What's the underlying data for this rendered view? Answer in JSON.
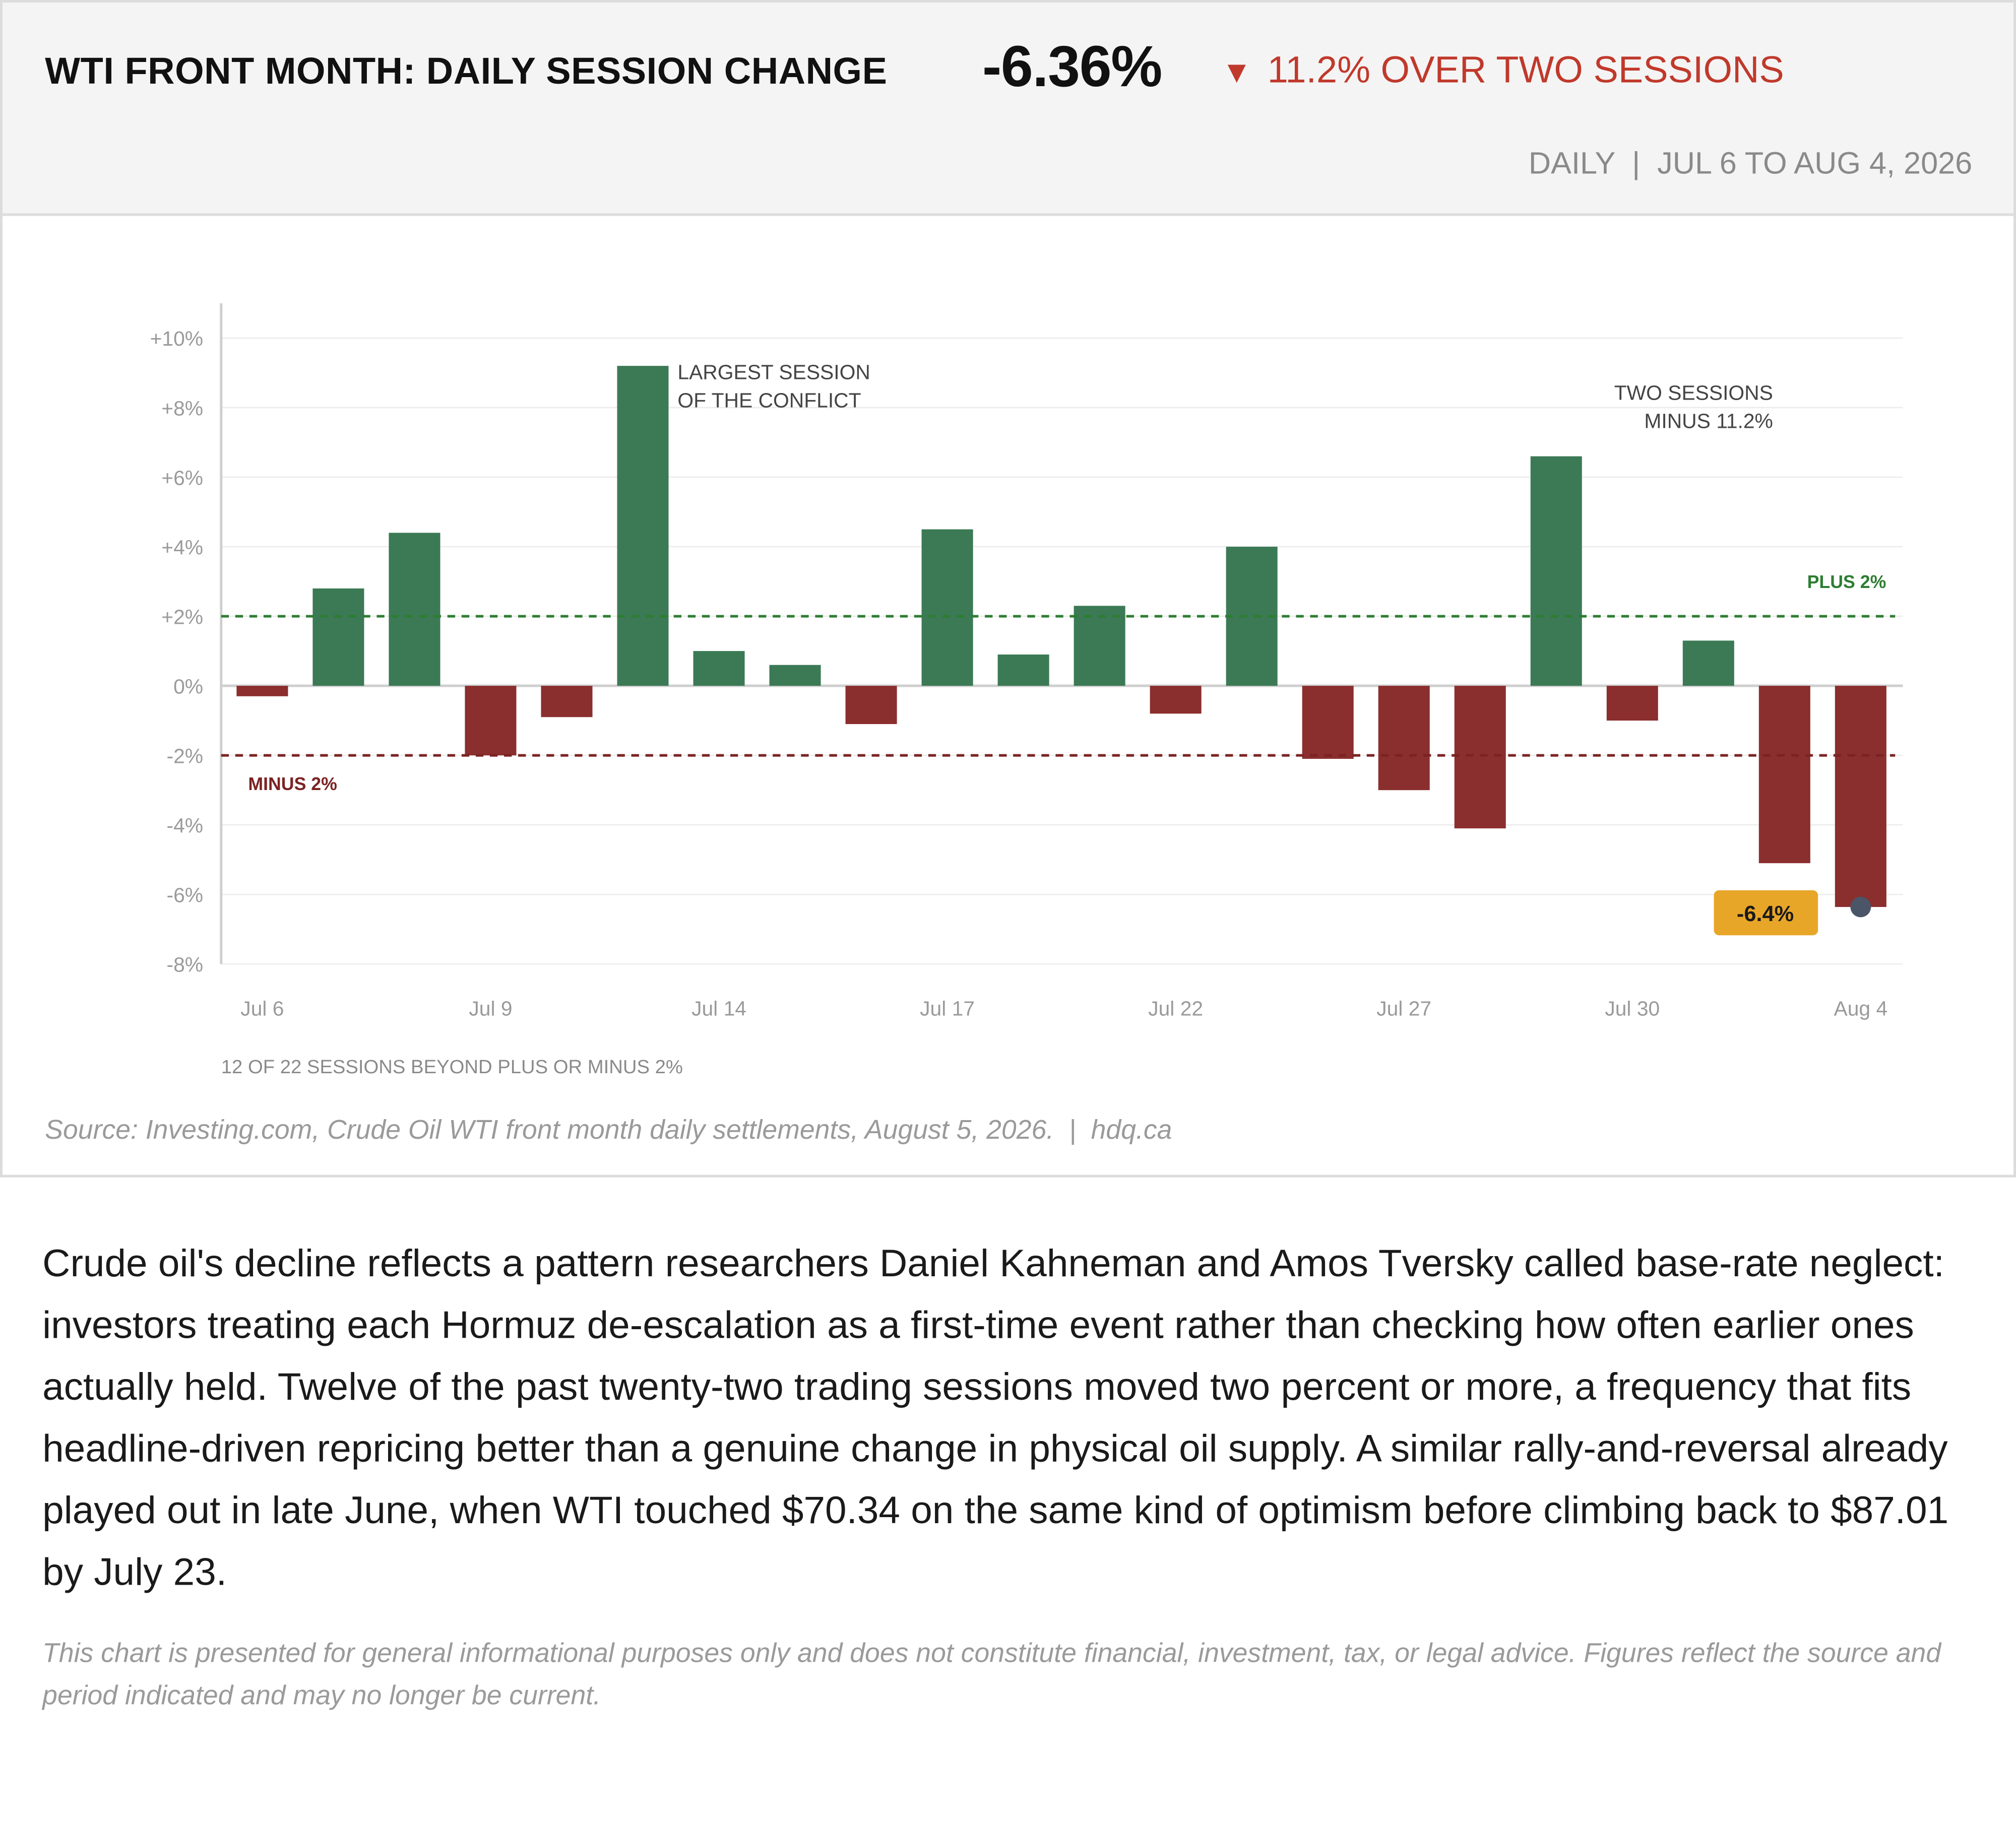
{
  "header": {
    "title": "WTI FRONT MONTH: DAILY SESSION CHANGE",
    "headline_value": "-6.36%",
    "delta_arrow": "▼",
    "delta_text": "11.2% OVER TWO SESSIONS",
    "date_range": "DAILY  |  JUL 6 TO AUG 4, 2026"
  },
  "chart_data": {
    "type": "bar",
    "title": "WTI FRONT MONTH: DAILY SESSION CHANGE",
    "ylabel": "",
    "xlabel": "",
    "ylim": [
      -8,
      10
    ],
    "yticks": [
      10,
      8,
      6,
      4,
      2,
      0,
      -2,
      -4,
      -6,
      -8
    ],
    "ytick_labels": [
      "+10%",
      "+8%",
      "+6%",
      "+4%",
      "+2%",
      "0%",
      "-2%",
      "-4%",
      "-6%",
      "-8%"
    ],
    "xtick_labels": [
      {
        "label": "Jul 6",
        "index": 0
      },
      {
        "label": "Jul 9",
        "index": 3
      },
      {
        "label": "Jul 14",
        "index": 6
      },
      {
        "label": "Jul 17",
        "index": 9
      },
      {
        "label": "Jul 22",
        "index": 12
      },
      {
        "label": "Jul 27",
        "index": 15
      },
      {
        "label": "Jul 30",
        "index": 18
      },
      {
        "label": "Aug 4",
        "index": 21
      }
    ],
    "values": [
      -0.3,
      2.8,
      4.4,
      -2.0,
      -0.9,
      9.2,
      1.0,
      0.6,
      -1.1,
      4.5,
      0.9,
      2.3,
      -0.8,
      4.0,
      -2.1,
      -3.0,
      -4.1,
      6.6,
      -1.0,
      1.3,
      -5.1,
      -6.36
    ],
    "positive_color": "#3b7a55",
    "negative_color": "#8b2e2e",
    "reference_lines": [
      {
        "value": 2,
        "label": "PLUS 2%",
        "color": "#2e7d32"
      },
      {
        "value": -2,
        "label": "MINUS 2%",
        "color": "#7b2323"
      }
    ],
    "annotations": [
      {
        "text": [
          "LARGEST SESSION",
          "OF THE CONFLICT"
        ],
        "index": 5
      },
      {
        "text": [
          "TWO SESSIONS",
          "MINUS 11.2%"
        ],
        "index": 17
      }
    ],
    "callout": {
      "text": "-6.4%",
      "index": 21,
      "color": "#e8a628"
    },
    "footnote": "12 OF 22 SESSIONS BEYOND PLUS OR MINUS 2%",
    "grid": true
  },
  "source": "Source: Investing.com, Crude Oil WTI front month daily settlements, August 5, 2026.  |  hdq.ca",
  "body_text": "Crude oil's decline reflects a pattern researchers Daniel Kahneman and Amos Tversky called base-rate neglect: investors treating each Hormuz de-escalation as a first-time event rather than checking how often earlier ones actually held. Twelve of the past twenty-two trading sessions moved two percent or more, a frequency that fits headline-driven repricing better than a genuine change in physical oil supply. A similar rally-and-reversal already played out in late June, when WTI touched $70.34 on the same kind of optimism before climbing back to $87.01 by July 23.",
  "disclaimer": "This chart is presented for general informational purposes only and does not constitute financial, investment, tax, or legal advice. Figures reflect the source and period indicated and may no longer be current."
}
